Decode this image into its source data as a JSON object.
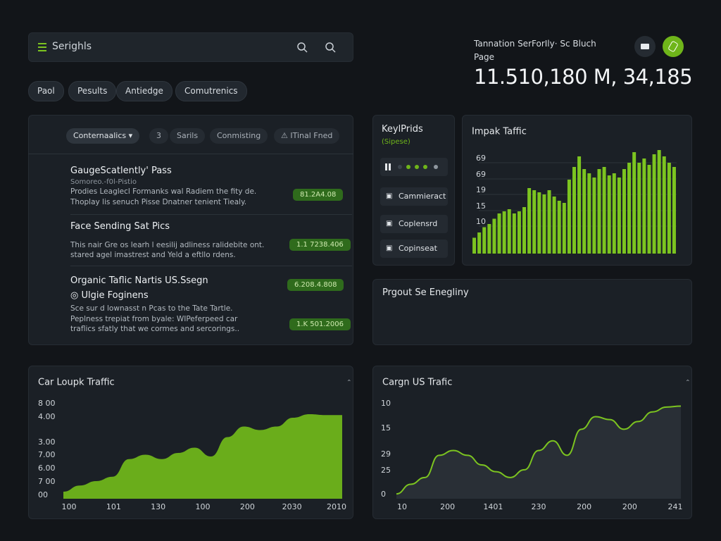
{
  "search": {
    "placeholder": "Serighls"
  },
  "chips": [
    "Paol",
    "Pesults",
    "Antiedge",
    "Comutrenics"
  ],
  "header": {
    "title": "Tannation SerForIly· Sc Bluch",
    "subtitle": "Page",
    "value": "11.510,180 M, 34,185"
  },
  "list_panel": {
    "filters": [
      "Conternaalics ▾",
      "3",
      "Sarils",
      "Conmisting",
      "⚠ ITinal Fned"
    ],
    "items": [
      {
        "title": "GaugeScatlently' Pass",
        "subtitle": "Somoreo.-f0l-Pistio",
        "lines": [
          "Prodies Leaglecl Formanks wal Radiem the fity de.",
          "Thoplay lis senuch Pisse Dnatner tenient Tiealy."
        ],
        "badges": [
          "81.2A4.08"
        ]
      },
      {
        "title": "Face Sending Sat Pics",
        "lines": [
          "This nair Gre os learh l eesilij adliness ralidebite ont.",
          "stared agel imastrest and Yeld a eftllo rdens."
        ],
        "badges": [
          "1.1 7238.406"
        ]
      },
      {
        "title": "Organic Taflic Nartis US.Ssegn",
        "subtitle": "Ulgie Foginens",
        "lines": [
          "Sce sur d lownasst n Pcas to the Tate Tartle.",
          "Peplness trepiat from byale: WIPeferpeed car",
          "traflics sfatly that we cormes and sercorings.."
        ],
        "badges": [
          "6.208.4.808",
          "1.K 501.2006"
        ]
      }
    ]
  },
  "keyprods": {
    "title": "KeylPrids",
    "subtitle": "(Sipese)",
    "buttons": [
      "Cammieract",
      "Coplensrd",
      "Copinseat"
    ]
  },
  "empty_panel": {
    "title": "Prgout Se Enegliny"
  },
  "chart_data": [
    {
      "type": "bar",
      "title": "Impak Taffic",
      "color": "#7cc420",
      "ylim": [
        0,
        100
      ],
      "y_labels": [
        "69",
        "69",
        "19",
        "15",
        "10"
      ],
      "values": [
        15,
        20,
        25,
        28,
        33,
        38,
        40,
        42,
        38,
        40,
        44,
        62,
        60,
        58,
        56,
        60,
        54,
        50,
        48,
        70,
        82,
        92,
        80,
        76,
        72,
        80,
        82,
        74,
        76,
        72,
        80,
        86,
        96,
        86,
        90,
        84,
        94,
        98,
        92,
        86,
        82
      ]
    },
    {
      "type": "area",
      "title": "Car Loupk Traffic",
      "color": "#6fb51a",
      "ylim": [
        0,
        100
      ],
      "y_labels": [
        "8 00",
        "4.00",
        "3.00",
        "7.00",
        "6.00",
        "7 00",
        "00"
      ],
      "x_labels": [
        "100",
        "101",
        "130",
        "100",
        "200",
        "2030",
        "2010"
      ],
      "values": [
        8,
        15,
        20,
        25,
        45,
        50,
        45,
        52,
        58,
        48,
        70,
        82,
        78,
        82,
        92,
        96,
        95,
        95
      ]
    },
    {
      "type": "line",
      "title": "Cargn US Trafic",
      "color": "#7cc420",
      "ylim": [
        0,
        100
      ],
      "y_labels": [
        "10",
        "15",
        "29",
        "25",
        "0"
      ],
      "x_labels": [
        "10",
        "200",
        "1401",
        "230",
        "200",
        "200",
        "241"
      ],
      "values": [
        5,
        15,
        22,
        45,
        50,
        45,
        35,
        28,
        22,
        30,
        50,
        60,
        45,
        72,
        85,
        82,
        72,
        80,
        90,
        95,
        96
      ]
    }
  ]
}
